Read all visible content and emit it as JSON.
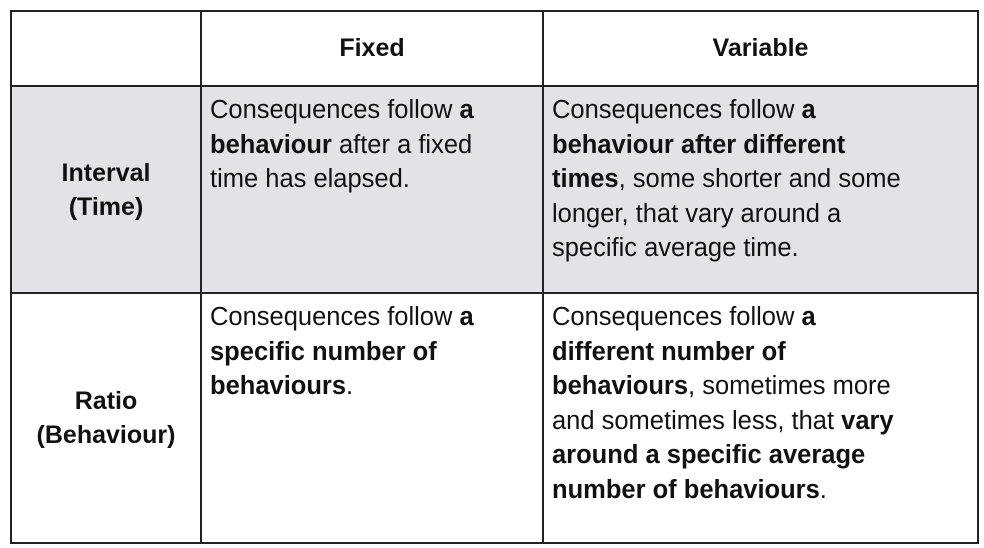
{
  "table": {
    "corner": "",
    "columns": [
      "Fixed",
      "Variable"
    ],
    "rows": [
      {
        "header_line1": "Interval",
        "header_line2": "(Time)",
        "fixed": {
          "t1": "Consequences follow ",
          "b1": "a",
          "b2": "behaviour",
          "t2": " after a fixed",
          "t3": "time has elapsed."
        },
        "variable": {
          "t1": "Consequences follow ",
          "b1": "a",
          "b2": "behaviour after different",
          "b3": "times",
          "t2": ", some shorter and some",
          "t3": "longer, that vary around a",
          "t4": "specific average time."
        }
      },
      {
        "header_line1": "Ratio",
        "header_line2": "(Behaviour)",
        "fixed": {
          "t1": "Consequences follow ",
          "b1": "a",
          "b2": "specific number of",
          "b3": "behaviours",
          "t2": "."
        },
        "variable": {
          "t1": "Consequences follow ",
          "b1": "a",
          "b2": "different number of",
          "b3": "behaviours",
          "t2": ", sometimes more",
          "t3": "and sometimes less, that ",
          "b4": "vary",
          "b5": "around a specific average",
          "b6": "number of behaviours",
          "t4": "."
        }
      }
    ]
  }
}
